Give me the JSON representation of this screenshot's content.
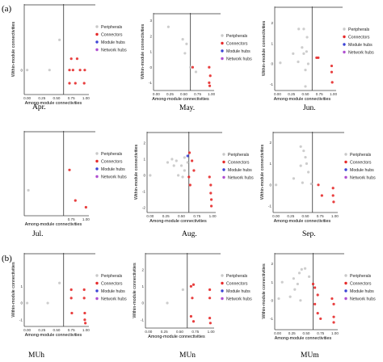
{
  "figure": {
    "section_labels": [
      "(a)",
      "(b)"
    ],
    "legend": [
      {
        "label": "Peripherals",
        "color": "#c8c8c8"
      },
      {
        "label": "Connectors",
        "color": "#e52a2a"
      },
      {
        "label": "Module hubs",
        "color": "#3b43d6"
      },
      {
        "label": "Network hubs",
        "color": "#b04fd0"
      }
    ]
  },
  "chart_data": [
    {
      "type": "scatter",
      "title": "Apr.",
      "xlabel": "Among-module connectivities",
      "ylabel": "Within-module connectivities",
      "xticks": [
        "0.00",
        "0.25",
        "0.50",
        "0.75",
        "1.00"
      ],
      "yticks": [
        "0"
      ],
      "xlim": [
        -0.05,
        1.05
      ],
      "ylim": [
        -1.3,
        3.5
      ],
      "legend": true,
      "series": [
        {
          "name": "Peripherals",
          "points": [
            [
              0.0,
              0
            ],
            [
              0.38,
              0
            ],
            [
              0.55,
              1.6
            ]
          ]
        },
        {
          "name": "Connectors",
          "points": [
            [
              0.75,
              0.6
            ],
            [
              0.85,
              0.6
            ],
            [
              0.72,
              0
            ],
            [
              0.78,
              0
            ],
            [
              0.9,
              0
            ],
            [
              0.98,
              0
            ],
            [
              0.72,
              -0.7
            ],
            [
              0.82,
              -0.7
            ],
            [
              0.97,
              -0.7
            ]
          ]
        }
      ]
    },
    {
      "type": "scatter",
      "title": "May.",
      "xlabel": "Among-module connectivities",
      "ylabel": "Within-module connectivities",
      "xticks": [
        "0.00",
        "0.25",
        "0.50",
        "0.75",
        "1.00"
      ],
      "yticks": [
        "3",
        "2",
        "1",
        "0",
        "-1"
      ],
      "xlim": [
        -0.05,
        1.05
      ],
      "ylim": [
        -1.5,
        3.5
      ],
      "legend": true,
      "series": [
        {
          "name": "Peripherals",
          "points": [
            [
              0.22,
              2.6
            ],
            [
              0.48,
              1.8
            ],
            [
              0.55,
              1.5
            ],
            [
              0.52,
              0.9
            ],
            [
              0.62,
              0
            ],
            [
              0.72,
              -0.3
            ]
          ]
        },
        {
          "name": "Connectors",
          "points": [
            [
              0.66,
              0.0
            ],
            [
              0.96,
              0.0
            ],
            [
              0.98,
              -0.55
            ],
            [
              0.96,
              -1.0
            ],
            [
              0.97,
              -1.2
            ]
          ]
        }
      ]
    },
    {
      "type": "scatter",
      "title": "Jun.",
      "xlabel": "Among-module connectivities",
      "ylabel": "Within-module connectivities",
      "xticks": [
        "0.00",
        "0.25",
        "0.50",
        "0.75",
        "1.00"
      ],
      "yticks": [
        "2",
        "1",
        "0",
        "-1"
      ],
      "xlim": [
        -0.05,
        1.05
      ],
      "ylim": [
        -1.3,
        2.8
      ],
      "legend": true,
      "series": [
        {
          "name": "Peripherals",
          "points": [
            [
              0.38,
              1.7
            ],
            [
              0.47,
              1.7
            ],
            [
              0.53,
              1.3
            ],
            [
              0.28,
              0.5
            ],
            [
              0.44,
              0.8
            ],
            [
              0.47,
              0.5
            ],
            [
              0.52,
              0.6
            ],
            [
              0.37,
              0.1
            ],
            [
              0.55,
              0.0
            ],
            [
              0.5,
              -0.3
            ],
            [
              0.5,
              -1.1
            ],
            [
              0.05,
              0.05
            ]
          ]
        },
        {
          "name": "Connectors",
          "points": [
            [
              0.7,
              0.3
            ],
            [
              0.73,
              0.3
            ],
            [
              0.97,
              -0.1
            ],
            [
              0.97,
              -0.4
            ],
            [
              0.98,
              -0.9
            ]
          ]
        }
      ]
    },
    {
      "type": "scatter",
      "title": "Jul.",
      "xlabel": "Among-module connectivities",
      "ylabel": "",
      "xticks": [
        "0.75",
        "1.00"
      ],
      "yticks": [],
      "xlim": [
        -0.05,
        1.05
      ],
      "ylim": [
        -1.5,
        3.5
      ],
      "legend": true,
      "series": [
        {
          "name": "Peripherals",
          "points": [
            [
              0.02,
              0
            ]
          ]
        },
        {
          "name": "Connectors",
          "points": [
            [
              0.72,
              1.2
            ],
            [
              0.82,
              -0.6
            ],
            [
              1.0,
              -1.0
            ]
          ]
        }
      ]
    },
    {
      "type": "scatter",
      "title": "Aug.",
      "xlabel": "Among-module connectivities",
      "ylabel": "Within-module connectivities",
      "xticks": [
        "0.00",
        "0.25",
        "0.50",
        "0.75",
        "1.00"
      ],
      "yticks": [
        "2",
        "1",
        "0",
        "-1",
        "-2"
      ],
      "xlim": [
        -0.05,
        1.05
      ],
      "ylim": [
        -2.3,
        2.7
      ],
      "legend": true,
      "series": [
        {
          "name": "Peripherals",
          "points": [
            [
              0.28,
              0.8
            ],
            [
              0.35,
              1.0
            ],
            [
              0.42,
              0.9
            ],
            [
              0.55,
              1.1
            ],
            [
              0.5,
              0.6
            ],
            [
              0.38,
              0.6
            ],
            [
              0.6,
              0.8
            ],
            [
              0.55,
              0.3
            ],
            [
              0.0,
              0.0
            ],
            [
              0.45,
              0.0
            ],
            [
              0.52,
              -0.1
            ]
          ]
        },
        {
          "name": "Connectors",
          "points": [
            [
              0.63,
              1.4
            ],
            [
              0.67,
              0.9
            ],
            [
              0.7,
              0.3
            ],
            [
              0.62,
              -0.1
            ],
            [
              0.64,
              -0.6
            ],
            [
              0.95,
              -0.1
            ],
            [
              0.97,
              -0.6
            ],
            [
              0.97,
              -1.1
            ],
            [
              0.98,
              -1.5
            ],
            [
              0.98,
              -1.9
            ]
          ]
        },
        {
          "name": "Module hubs",
          "points": [
            [
              0.6,
              1.2
            ]
          ]
        }
      ]
    },
    {
      "type": "scatter",
      "title": "Sep.",
      "xlabel": "Among-module connectivities",
      "ylabel": "Within-module connectivities",
      "xticks": [
        "0.00",
        "0.25",
        "0.50",
        "0.75",
        "1.00"
      ],
      "yticks": [
        "2",
        "1",
        "0",
        "-1"
      ],
      "xlim": [
        -0.05,
        1.05
      ],
      "ylim": [
        -1.3,
        2.5
      ],
      "legend": true,
      "series": [
        {
          "name": "Peripherals",
          "points": [
            [
              0.42,
              1.8
            ],
            [
              0.47,
              1.6
            ],
            [
              0.5,
              1.3
            ],
            [
              0.52,
              1.0
            ],
            [
              0.42,
              0.9
            ],
            [
              0.55,
              0.6
            ],
            [
              0.3,
              0.3
            ],
            [
              0.45,
              0.1
            ],
            [
              0.6,
              0.05
            ],
            [
              0.0,
              0.0
            ]
          ]
        },
        {
          "name": "Connectors",
          "points": [
            [
              0.72,
              0.0
            ],
            [
              0.78,
              -0.5
            ],
            [
              0.97,
              -0.15
            ],
            [
              0.97,
              -0.5
            ],
            [
              0.98,
              -0.8
            ]
          ]
        }
      ]
    },
    {
      "type": "scatter",
      "title": "MUh",
      "xlabel": "Among-module connectivities",
      "ylabel": "Within-module connectivities",
      "xticks": [
        "0.00",
        "0.25",
        "0.50",
        "0.75",
        "1.00"
      ],
      "yticks": [
        "1",
        "0",
        "-1"
      ],
      "xlim": [
        -0.05,
        1.05
      ],
      "ylim": [
        -1.4,
        3.0
      ],
      "legend": true,
      "series": [
        {
          "name": "Peripherals",
          "points": [
            [
              0.0,
              0
            ],
            [
              0.35,
              0
            ],
            [
              0.55,
              1.2
            ]
          ]
        },
        {
          "name": "Connectors",
          "points": [
            [
              0.75,
              0.8
            ],
            [
              0.97,
              0.8
            ],
            [
              0.75,
              0.3
            ],
            [
              0.97,
              0.3
            ],
            [
              0.76,
              -0.6
            ],
            [
              0.98,
              -0.6
            ],
            [
              0.98,
              -1.0
            ],
            [
              0.99,
              -1.2
            ]
          ]
        }
      ]
    },
    {
      "type": "scatter",
      "title": "MUn",
      "xlabel": "Among-module connectivities",
      "ylabel": "Within-module connectivities",
      "xticks": [
        "0.00",
        "0.25",
        "0.50",
        "0.75",
        "1.00"
      ],
      "yticks": [
        "2",
        "1",
        "0",
        "-1"
      ],
      "xlim": [
        -0.05,
        1.05
      ],
      "ylim": [
        -1.5,
        3.0
      ],
      "legend": true,
      "series": [
        {
          "name": "Peripherals",
          "points": [
            [
              0.3,
              0.0
            ],
            [
              0.55,
              0.8
            ]
          ]
        },
        {
          "name": "Connectors",
          "points": [
            [
              0.68,
              1.0
            ],
            [
              0.72,
              1.1
            ],
            [
              0.7,
              0.3
            ],
            [
              0.98,
              0.8
            ],
            [
              0.98,
              0.3
            ],
            [
              0.68,
              -0.8
            ],
            [
              0.72,
              -1.1
            ],
            [
              0.98,
              -0.9
            ],
            [
              0.99,
              -1.2
            ]
          ]
        }
      ]
    },
    {
      "type": "scatter",
      "title": "MUm",
      "xlabel": "Among-module connectivities",
      "ylabel": "Within-module connectivities",
      "xticks": [
        "0.00",
        "0.25",
        "0.50",
        "0.75",
        "1.00"
      ],
      "yticks": [
        "2",
        "1",
        "0",
        "-1"
      ],
      "xlim": [
        -0.05,
        1.05
      ],
      "ylim": [
        -1.6,
        2.6
      ],
      "legend": true,
      "series": [
        {
          "name": "Peripherals",
          "points": [
            [
              0.08,
              1.0
            ],
            [
              0.28,
              1.2
            ],
            [
              0.38,
              1.5
            ],
            [
              0.42,
              1.7
            ],
            [
              0.48,
              1.75
            ],
            [
              0.55,
              1.3
            ],
            [
              0.35,
              0.9
            ],
            [
              0.3,
              0.6
            ],
            [
              0.22,
              0.2
            ],
            [
              0.4,
              0.0
            ],
            [
              0.02,
              0.1
            ]
          ]
        },
        {
          "name": "Connectors",
          "points": [
            [
              0.62,
              0.9
            ],
            [
              0.65,
              0.7
            ],
            [
              0.7,
              0.3
            ],
            [
              0.95,
              0.1
            ],
            [
              0.98,
              -0.2
            ],
            [
              0.65,
              -0.2
            ],
            [
              0.7,
              -0.7
            ],
            [
              0.75,
              -1.0
            ],
            [
              0.98,
              -0.9
            ],
            [
              0.98,
              -1.2
            ]
          ]
        }
      ]
    }
  ]
}
